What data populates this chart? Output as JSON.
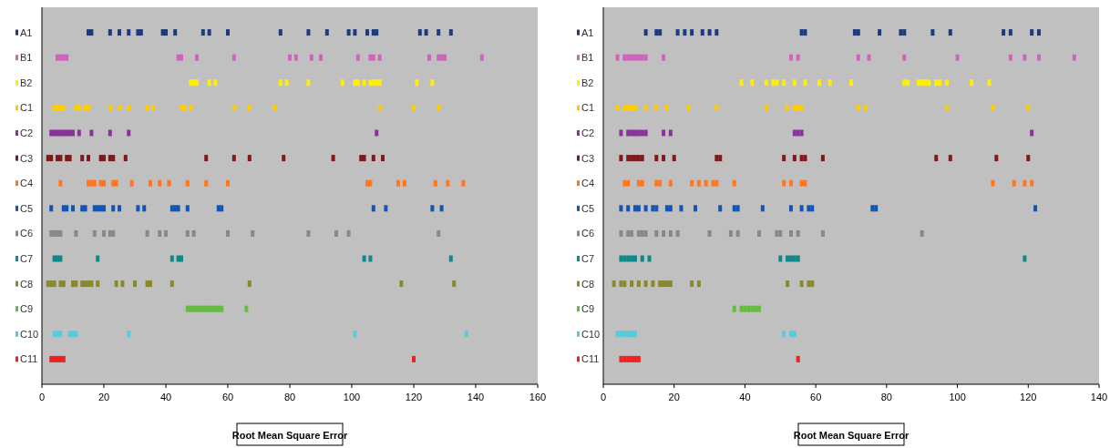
{
  "chart_data": [
    {
      "type": "scatter",
      "orientation": "horizontal",
      "marker": "square",
      "xlabel": "Root Mean Square Error",
      "xlim": [
        0,
        160
      ],
      "xticks": [
        0,
        20,
        40,
        60,
        80,
        100,
        120,
        140,
        160
      ],
      "categories": [
        "A1",
        "B1",
        "B2",
        "C1",
        "C2",
        "C3",
        "C4",
        "C5",
        "C6",
        "C7",
        "C8",
        "C9",
        "C10",
        "C11"
      ],
      "series": [
        {
          "color": "#1f3a7a",
          "x": [
            "A1",
            "A1",
            "A1",
            "A1",
            "A1",
            "A1",
            "A1",
            "A1",
            "A1",
            "A1",
            "A1",
            "A1",
            "A1",
            "A1",
            "A1",
            "A1",
            "A1",
            "A1",
            "A1",
            "A1",
            "A1",
            "A1",
            "A1",
            "A1",
            "A1"
          ],
          "values": [
            15,
            16,
            22,
            25,
            28,
            31,
            32,
            39,
            40,
            43,
            52,
            54,
            60,
            77,
            86,
            92,
            99,
            101,
            105,
            107,
            108,
            122,
            124,
            128,
            132
          ]
        },
        {
          "color": "#cc66bb",
          "x": [
            "B1",
            "B1",
            "B1",
            "B1",
            "B1",
            "B1",
            "B1",
            "B1",
            "B1",
            "B1",
            "B1",
            "B1",
            "B1",
            "B1",
            "B1",
            "B1",
            "B1",
            "B1",
            "B1",
            "B1",
            "B1"
          ],
          "values": [
            5,
            6,
            7,
            8,
            44,
            45,
            50,
            62,
            80,
            82,
            87,
            90,
            102,
            106,
            107,
            109,
            125,
            128,
            129,
            130,
            142
          ]
        },
        {
          "color": "#ffee00",
          "x": [
            "B2",
            "B2",
            "B2",
            "B2",
            "B2",
            "B2",
            "B2",
            "B2",
            "B2",
            "B2",
            "B2",
            "B2",
            "B2",
            "B2",
            "B2",
            "B2",
            "B2",
            "B2"
          ],
          "values": [
            48,
            49,
            50,
            54,
            56,
            77,
            79,
            86,
            97,
            101,
            102,
            104,
            106,
            107,
            108,
            109,
            121,
            126
          ]
        },
        {
          "color": "#ffcc00",
          "x": [
            "C1",
            "C1",
            "C1",
            "C1",
            "C1",
            "C1",
            "C1",
            "C1",
            "C1",
            "C1",
            "C1",
            "C1",
            "C1",
            "C1",
            "C1",
            "C1",
            "C1",
            "C1",
            "C1",
            "C1",
            "C1",
            "C1"
          ],
          "values": [
            4,
            5,
            6,
            7,
            11,
            12,
            14,
            15,
            22,
            25,
            28,
            34,
            36,
            45,
            46,
            48,
            62,
            67,
            75,
            109,
            120,
            128
          ]
        },
        {
          "color": "#883399",
          "x": [
            "C2",
            "C2",
            "C2",
            "C2",
            "C2",
            "C2",
            "C2",
            "C2",
            "C2",
            "C2",
            "C2",
            "C2",
            "C2"
          ],
          "values": [
            3,
            4,
            5,
            6,
            7,
            8,
            9,
            10,
            12,
            16,
            22,
            28,
            108
          ]
        },
        {
          "color": "#7f1a1a",
          "x": [
            "C3",
            "C3",
            "C3",
            "C3",
            "C3",
            "C3",
            "C3",
            "C3",
            "C3",
            "C3",
            "C3",
            "C3",
            "C3",
            "C3",
            "C3",
            "C3",
            "C3",
            "C3",
            "C3",
            "C3",
            "C3",
            "C3"
          ],
          "values": [
            2,
            3,
            5,
            6,
            8,
            9,
            13,
            15,
            19,
            20,
            22,
            23,
            27,
            53,
            62,
            67,
            78,
            94,
            103,
            104,
            107,
            110
          ]
        },
        {
          "color": "#ff7722",
          "x": [
            "C4",
            "C4",
            "C4",
            "C4",
            "C4",
            "C4",
            "C4",
            "C4",
            "C4",
            "C4",
            "C4",
            "C4",
            "C4",
            "C4",
            "C4",
            "C4",
            "C4",
            "C4",
            "C4",
            "C4",
            "C4",
            "C4"
          ],
          "values": [
            6,
            15,
            16,
            17,
            19,
            20,
            23,
            24,
            29,
            35,
            38,
            41,
            47,
            53,
            60,
            105,
            106,
            115,
            117,
            127,
            131,
            136
          ]
        },
        {
          "color": "#1155bb",
          "x": [
            "C5",
            "C5",
            "C5",
            "C5",
            "C5",
            "C5",
            "C5",
            "C5",
            "C5",
            "C5",
            "C5",
            "C5",
            "C5",
            "C5",
            "C5",
            "C5",
            "C5",
            "C5",
            "C5",
            "C5",
            "C5",
            "C5",
            "C5",
            "C5"
          ],
          "values": [
            3,
            7,
            8,
            10,
            13,
            14,
            17,
            18,
            19,
            20,
            23,
            25,
            31,
            33,
            42,
            43,
            44,
            47,
            57,
            58,
            107,
            111,
            126,
            129
          ]
        },
        {
          "color": "#888888",
          "x": [
            "C6",
            "C6",
            "C6",
            "C6",
            "C6",
            "C6",
            "C6",
            "C6",
            "C6",
            "C6",
            "C6",
            "C6",
            "C6",
            "C6",
            "C6",
            "C6",
            "C6",
            "C6",
            "C6",
            "C6"
          ],
          "values": [
            3,
            4,
            5,
            6,
            11,
            17,
            20,
            22,
            23,
            34,
            38,
            40,
            47,
            49,
            60,
            68,
            86,
            95,
            99,
            128
          ]
        },
        {
          "color": "#118888",
          "x": [
            "C7",
            "C7",
            "C7",
            "C7",
            "C7",
            "C7",
            "C7",
            "C7",
            "C7",
            "C7"
          ],
          "values": [
            4,
            5,
            6,
            18,
            42,
            44,
            45,
            104,
            106,
            132
          ]
        },
        {
          "color": "#888833",
          "x": [
            "C8",
            "C8",
            "C8",
            "C8",
            "C8",
            "C8",
            "C8",
            "C8",
            "C8",
            "C8",
            "C8",
            "C8",
            "C8",
            "C8",
            "C8",
            "C8",
            "C8",
            "C8",
            "C8",
            "C8",
            "C8"
          ],
          "values": [
            2,
            3,
            4,
            6,
            7,
            10,
            11,
            13,
            14,
            15,
            16,
            18,
            24,
            26,
            30,
            34,
            35,
            42,
            67,
            116,
            133
          ]
        },
        {
          "color": "#66bb44",
          "x": [
            "C9",
            "C9",
            "C9",
            "C9",
            "C9",
            "C9",
            "C9",
            "C9",
            "C9",
            "C9",
            "C9",
            "C9",
            "C9"
          ],
          "values": [
            47,
            48,
            49,
            50,
            51,
            52,
            53,
            54,
            55,
            56,
            57,
            58,
            66
          ]
        },
        {
          "color": "#55ccdd",
          "x": [
            "C10",
            "C10",
            "C10",
            "C10",
            "C10",
            "C10",
            "C10",
            "C10",
            "C10"
          ],
          "values": [
            4,
            5,
            6,
            9,
            10,
            11,
            28,
            101,
            137
          ]
        },
        {
          "color": "#ee2222",
          "x": [
            "C11",
            "C11",
            "C11",
            "C11",
            "C11",
            "C11"
          ],
          "values": [
            3,
            4,
            5,
            6,
            7,
            120
          ]
        }
      ]
    },
    {
      "type": "scatter",
      "orientation": "horizontal",
      "marker": "square",
      "xlabel": "Root Mean Square Error",
      "xlim": [
        0,
        140
      ],
      "xticks": [
        0,
        20,
        40,
        60,
        80,
        100,
        120,
        140
      ],
      "categories": [
        "A1",
        "B1",
        "B2",
        "C1",
        "C2",
        "C3",
        "C4",
        "C5",
        "C6",
        "C7",
        "C8",
        "C9",
        "C10",
        "C11"
      ],
      "series": [
        {
          "color": "#1f3a7a",
          "x": [
            "A1",
            "A1",
            "A1",
            "A1",
            "A1",
            "A1",
            "A1",
            "A1",
            "A1",
            "A1",
            "A1",
            "A1",
            "A1",
            "A1",
            "A1",
            "A1",
            "A1",
            "A1",
            "A1",
            "A1",
            "A1",
            "A1"
          ],
          "values": [
            12,
            15,
            16,
            21,
            23,
            25,
            28,
            30,
            32,
            56,
            57,
            71,
            72,
            78,
            84,
            85,
            93,
            98,
            113,
            115,
            121,
            123
          ]
        },
        {
          "color": "#cc66bb",
          "x": [
            "B1",
            "B1",
            "B1",
            "B1",
            "B1",
            "B1",
            "B1",
            "B1",
            "B1",
            "B1",
            "B1",
            "B1",
            "B1",
            "B1",
            "B1",
            "B1",
            "B1",
            "B1",
            "B1"
          ],
          "values": [
            4,
            6,
            7,
            8,
            9,
            10,
            11,
            12,
            17,
            53,
            55,
            72,
            75,
            85,
            100,
            115,
            119,
            123,
            133
          ]
        },
        {
          "color": "#ffee00",
          "x": [
            "B2",
            "B2",
            "B2",
            "B2",
            "B2",
            "B2",
            "B2",
            "B2",
            "B2",
            "B2",
            "B2",
            "B2",
            "B2",
            "B2",
            "B2",
            "B2",
            "B2",
            "B2",
            "B2",
            "B2",
            "B2",
            "B2"
          ],
          "values": [
            39,
            42,
            46,
            48,
            49,
            51,
            54,
            57,
            61,
            64,
            70,
            85,
            86,
            89,
            90,
            91,
            92,
            94,
            95,
            97,
            104,
            109
          ]
        },
        {
          "color": "#ffcc00",
          "x": [
            "C1",
            "C1",
            "C1",
            "C1",
            "C1",
            "C1",
            "C1",
            "C1",
            "C1",
            "C1",
            "C1",
            "C1",
            "C1",
            "C1",
            "C1",
            "C1",
            "C1",
            "C1",
            "C1",
            "C1"
          ],
          "values": [
            4,
            6,
            7,
            8,
            9,
            12,
            15,
            18,
            24,
            32,
            46,
            52,
            54,
            55,
            56,
            72,
            74,
            97,
            110,
            120
          ]
        },
        {
          "color": "#883399",
          "x": [
            "C2",
            "C2",
            "C2",
            "C2",
            "C2",
            "C2",
            "C2",
            "C2",
            "C2",
            "C2",
            "C2",
            "C2",
            "C2"
          ],
          "values": [
            5,
            7,
            8,
            9,
            10,
            11,
            12,
            17,
            19,
            54,
            55,
            56,
            121
          ]
        },
        {
          "color": "#7f1a1a",
          "x": [
            "C3",
            "C3",
            "C3",
            "C3",
            "C3",
            "C3",
            "C3",
            "C3",
            "C3",
            "C3",
            "C3",
            "C3",
            "C3",
            "C3",
            "C3",
            "C3",
            "C3",
            "C3",
            "C3",
            "C3"
          ],
          "values": [
            5,
            7,
            8,
            9,
            10,
            11,
            15,
            17,
            20,
            32,
            33,
            51,
            54,
            56,
            57,
            62,
            94,
            98,
            111,
            120
          ]
        },
        {
          "color": "#ff7722",
          "x": [
            "C4",
            "C4",
            "C4",
            "C4",
            "C4",
            "C4",
            "C4",
            "C4",
            "C4",
            "C4",
            "C4",
            "C4",
            "C4",
            "C4",
            "C4",
            "C4",
            "C4",
            "C4",
            "C4",
            "C4",
            "C4"
          ],
          "values": [
            6,
            7,
            10,
            11,
            15,
            16,
            19,
            25,
            27,
            29,
            31,
            32,
            37,
            51,
            53,
            56,
            57,
            110,
            116,
            119,
            121
          ]
        },
        {
          "color": "#1155bb",
          "x": [
            "C5",
            "C5",
            "C5",
            "C5",
            "C5",
            "C5",
            "C5",
            "C5",
            "C5",
            "C5",
            "C5",
            "C5",
            "C5",
            "C5",
            "C5",
            "C5",
            "C5",
            "C5",
            "C5",
            "C5",
            "C5",
            "C5"
          ],
          "values": [
            5,
            7,
            9,
            10,
            12,
            14,
            15,
            18,
            19,
            22,
            26,
            33,
            37,
            38,
            45,
            53,
            56,
            58,
            59,
            76,
            77,
            122
          ]
        },
        {
          "color": "#888888",
          "x": [
            "C6",
            "C6",
            "C6",
            "C6",
            "C6",
            "C6",
            "C6",
            "C6",
            "C6",
            "C6",
            "C6",
            "C6",
            "C6",
            "C6",
            "C6",
            "C6",
            "C6",
            "C6",
            "C6",
            "C6"
          ],
          "values": [
            5,
            7,
            8,
            10,
            11,
            12,
            15,
            17,
            19,
            21,
            30,
            36,
            38,
            44,
            49,
            50,
            53,
            55,
            62,
            90
          ]
        },
        {
          "color": "#118888",
          "x": [
            "C7",
            "C7",
            "C7",
            "C7",
            "C7",
            "C7",
            "C7",
            "C7",
            "C7",
            "C7",
            "C7",
            "C7",
            "C7"
          ],
          "values": [
            5,
            6,
            7,
            8,
            9,
            11,
            13,
            50,
            52,
            53,
            54,
            55,
            119
          ]
        },
        {
          "color": "#888833",
          "x": [
            "C8",
            "C8",
            "C8",
            "C8",
            "C8",
            "C8",
            "C8",
            "C8",
            "C8",
            "C8",
            "C8",
            "C8",
            "C8",
            "C8",
            "C8",
            "C8",
            "C8"
          ],
          "values": [
            3,
            5,
            6,
            8,
            10,
            12,
            14,
            16,
            17,
            18,
            19,
            25,
            27,
            52,
            56,
            58,
            59
          ]
        },
        {
          "color": "#66bb44",
          "x": [
            "C9",
            "C9",
            "C9",
            "C9",
            "C9",
            "C9",
            "C9"
          ],
          "values": [
            37,
            39,
            40,
            41,
            42,
            43,
            44
          ]
        },
        {
          "color": "#55ccdd",
          "x": [
            "C10",
            "C10",
            "C10",
            "C10",
            "C10",
            "C10",
            "C10",
            "C10",
            "C10"
          ],
          "values": [
            4,
            5,
            6,
            7,
            8,
            9,
            51,
            53,
            54
          ]
        },
        {
          "color": "#ee2222",
          "x": [
            "C11",
            "C11",
            "C11",
            "C11",
            "C11",
            "C11",
            "C11"
          ],
          "values": [
            5,
            6,
            7,
            8,
            9,
            10,
            55
          ]
        }
      ]
    }
  ]
}
